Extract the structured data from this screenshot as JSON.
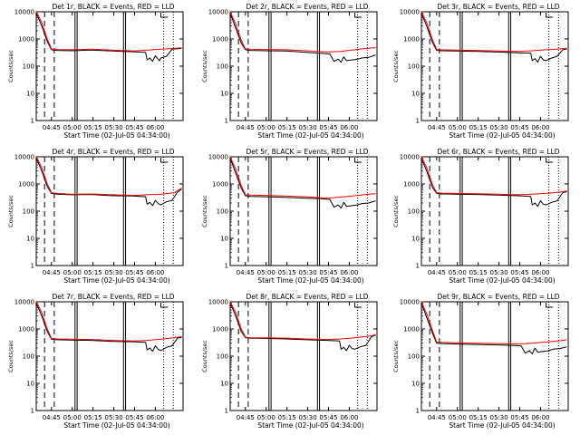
{
  "page": {
    "background": "#ffffff",
    "x_caption": "Start Time (02-Jul-05 04:34:00)",
    "y_caption": "Counts/sec",
    "y_ticks": [
      "1",
      "10",
      "100",
      "1000",
      "10000"
    ],
    "x_ticks_a": [
      "04:45",
      "05:00",
      "05:15",
      "05:30",
      "05:45",
      "06:00"
    ],
    "x_ticks_b": [
      "04:45",
      "05:00",
      "05:15",
      "05:30",
      "05:45",
      "06:00"
    ],
    "event_color": "#000000",
    "lld_color": "#ff0000"
  },
  "chart_data": [
    {
      "type": "line",
      "title": "Det 1r, BLACK = Events, RED = LLD",
      "xlabel": "Start Time (02-Jul-05 04:34:00)",
      "ylabel": "Counts/sec",
      "x_unit": "minutes after 04:34:00",
      "xlim": [
        0,
        106
      ],
      "ylim": [
        1,
        10000
      ],
      "yscale": "log",
      "series": [
        {
          "name": "Events",
          "color": "#000000",
          "x": [
            0,
            4,
            8,
            11,
            15,
            25,
            40,
            55,
            70,
            79,
            80,
            82,
            84,
            86,
            88,
            89,
            90,
            94,
            98,
            102,
            105
          ],
          "values": [
            9000,
            3000,
            800,
            400,
            380,
            370,
            390,
            360,
            340,
            320,
            170,
            200,
            150,
            240,
            180,
            160,
            200,
            230,
            420,
            440,
            450
          ]
        },
        {
          "name": "LLD",
          "color": "#ff0000",
          "x": [
            0,
            4,
            8,
            11,
            15,
            25,
            40,
            55,
            70,
            80,
            90,
            100,
            105
          ],
          "values": [
            10000,
            4000,
            1000,
            430,
            410,
            400,
            420,
            390,
            360,
            390,
            420,
            450,
            470
          ]
        }
      ]
    },
    {
      "type": "line",
      "title": "Det 2r, BLACK = Events, RED = LLD",
      "xlabel": "Start Time (02-Jul-05 04:34:00)",
      "ylabel": "Counts/sec",
      "x_unit": "minutes after 04:34:00",
      "xlim": [
        0,
        106
      ],
      "ylim": [
        1,
        10000
      ],
      "yscale": "log",
      "series": [
        {
          "name": "Events",
          "color": "#000000",
          "x": [
            0,
            4,
            8,
            11,
            15,
            25,
            40,
            55,
            65,
            72,
            75,
            78,
            80,
            82,
            84,
            88,
            92,
            95,
            100,
            105
          ],
          "values": [
            9000,
            2500,
            700,
            400,
            380,
            370,
            360,
            320,
            300,
            280,
            150,
            180,
            140,
            220,
            160,
            170,
            180,
            200,
            210,
            260
          ]
        },
        {
          "name": "LLD",
          "color": "#ff0000",
          "x": [
            0,
            4,
            8,
            11,
            15,
            25,
            40,
            55,
            70,
            80,
            90,
            100,
            105
          ],
          "values": [
            10000,
            3500,
            900,
            430,
            420,
            410,
            400,
            370,
            330,
            350,
            400,
            460,
            480
          ]
        }
      ]
    },
    {
      "type": "line",
      "title": "Det 3r, BLACK = Events, RED = LLD",
      "xlabel": "Start Time (02-Jul-05 04:34:00)",
      "ylabel": "Counts/sec",
      "x_unit": "minutes after 04:34:00",
      "xlim": [
        0,
        106
      ],
      "ylim": [
        1,
        10000
      ],
      "yscale": "log",
      "series": [
        {
          "name": "Events",
          "color": "#000000",
          "x": [
            0,
            4,
            8,
            11,
            15,
            25,
            40,
            55,
            70,
            79,
            80,
            82,
            84,
            86,
            88,
            90,
            94,
            98,
            102,
            105
          ],
          "values": [
            9000,
            2800,
            750,
            380,
            370,
            360,
            350,
            330,
            310,
            300,
            160,
            190,
            140,
            230,
            170,
            160,
            200,
            230,
            400,
            430
          ]
        },
        {
          "name": "LLD",
          "color": "#ff0000",
          "x": [
            0,
            4,
            8,
            11,
            15,
            25,
            40,
            55,
            70,
            80,
            90,
            100,
            105
          ],
          "values": [
            10000,
            3800,
            950,
            410,
            400,
            390,
            380,
            360,
            350,
            370,
            400,
            430,
            460
          ]
        }
      ]
    },
    {
      "type": "line",
      "title": "Det 4r, BLACK = Events, RED = LLD",
      "xlabel": "Start Time (02-Jul-05 04:34:00)",
      "ylabel": "Counts/sec",
      "x_unit": "minutes after 04:34:00",
      "xlim": [
        0,
        106
      ],
      "ylim": [
        1,
        10000
      ],
      "yscale": "log",
      "series": [
        {
          "name": "Events",
          "color": "#000000",
          "x": [
            0,
            4,
            8,
            11,
            15,
            25,
            40,
            55,
            70,
            79,
            80,
            82,
            84,
            86,
            88,
            90,
            94,
            98,
            102,
            105
          ],
          "values": [
            9000,
            3000,
            800,
            450,
            420,
            400,
            410,
            370,
            360,
            340,
            180,
            210,
            160,
            250,
            190,
            170,
            220,
            250,
            500,
            650
          ]
        },
        {
          "name": "LLD",
          "color": "#ff0000",
          "x": [
            0,
            4,
            8,
            11,
            15,
            25,
            40,
            55,
            70,
            80,
            90,
            100,
            105
          ],
          "values": [
            10000,
            4000,
            1000,
            480,
            450,
            420,
            430,
            400,
            380,
            400,
            420,
            480,
            700
          ]
        }
      ]
    },
    {
      "type": "line",
      "title": "Det 5r, BLACK = Events, RED = LLD",
      "xlabel": "Start Time (02-Jul-05 04:34:00)",
      "ylabel": "Counts/sec",
      "x_unit": "minutes after 04:34:00",
      "xlim": [
        0,
        106
      ],
      "ylim": [
        1,
        10000
      ],
      "yscale": "log",
      "series": [
        {
          "name": "Events",
          "color": "#000000",
          "x": [
            0,
            4,
            8,
            11,
            15,
            25,
            40,
            55,
            65,
            72,
            75,
            78,
            80,
            82,
            84,
            88,
            92,
            95,
            100,
            105
          ],
          "values": [
            9000,
            2500,
            700,
            370,
            350,
            340,
            320,
            300,
            290,
            270,
            140,
            170,
            130,
            210,
            150,
            160,
            170,
            190,
            200,
            240
          ]
        },
        {
          "name": "LLD",
          "color": "#ff0000",
          "x": [
            0,
            4,
            8,
            11,
            15,
            25,
            40,
            55,
            70,
            80,
            90,
            100,
            105
          ],
          "values": [
            10000,
            3500,
            900,
            400,
            390,
            380,
            360,
            340,
            300,
            330,
            370,
            420,
            440
          ]
        }
      ]
    },
    {
      "type": "line",
      "title": "Det 6r, BLACK = Events, RED = LLD",
      "xlabel": "Start Time (02-Jul-05 04:34:00)",
      "ylabel": "Counts/sec",
      "x_unit": "minutes after 04:34:00",
      "xlim": [
        0,
        106
      ],
      "ylim": [
        1,
        10000
      ],
      "yscale": "log",
      "series": [
        {
          "name": "Events",
          "color": "#000000",
          "x": [
            0,
            4,
            8,
            11,
            15,
            25,
            40,
            55,
            70,
            79,
            80,
            82,
            84,
            86,
            88,
            90,
            94,
            98,
            102,
            105
          ],
          "values": [
            9000,
            2800,
            750,
            450,
            430,
            420,
            410,
            390,
            370,
            350,
            170,
            200,
            150,
            240,
            180,
            170,
            210,
            240,
            480,
            520
          ]
        },
        {
          "name": "LLD",
          "color": "#ff0000",
          "x": [
            0,
            4,
            8,
            11,
            15,
            25,
            40,
            55,
            70,
            80,
            90,
            100,
            105
          ],
          "values": [
            10000,
            3800,
            950,
            480,
            460,
            450,
            440,
            420,
            400,
            420,
            450,
            500,
            560
          ]
        }
      ]
    },
    {
      "type": "line",
      "title": "Det 7r, BLACK = Events, RED = LLD",
      "xlabel": "Start Time (02-Jul-05 04:34:00)",
      "ylabel": "Counts/sec",
      "x_unit": "minutes after 04:34:00",
      "xlim": [
        0,
        106
      ],
      "ylim": [
        1,
        10000
      ],
      "yscale": "log",
      "series": [
        {
          "name": "Events",
          "color": "#000000",
          "x": [
            0,
            4,
            8,
            11,
            15,
            25,
            40,
            55,
            70,
            79,
            80,
            82,
            84,
            86,
            88,
            90,
            94,
            98,
            102,
            105
          ],
          "values": [
            9000,
            3000,
            800,
            420,
            400,
            390,
            380,
            350,
            340,
            320,
            170,
            200,
            150,
            240,
            180,
            160,
            210,
            240,
            460,
            490
          ]
        },
        {
          "name": "LLD",
          "color": "#ff0000",
          "x": [
            0,
            4,
            8,
            11,
            15,
            25,
            40,
            55,
            70,
            80,
            90,
            100,
            105
          ],
          "values": [
            10000,
            4000,
            1000,
            450,
            430,
            420,
            410,
            380,
            360,
            380,
            420,
            480,
            520
          ]
        }
      ]
    },
    {
      "type": "line",
      "title": "Det 8r, BLACK = Events, RED = LLD",
      "xlabel": "Start Time (02-Jul-05 04:34:00)",
      "ylabel": "Counts/sec",
      "x_unit": "minutes after 04:34:00",
      "xlim": [
        0,
        106
      ],
      "ylim": [
        1,
        10000
      ],
      "yscale": "log",
      "series": [
        {
          "name": "Events",
          "color": "#000000",
          "x": [
            0,
            4,
            8,
            11,
            15,
            25,
            40,
            55,
            70,
            79,
            80,
            82,
            84,
            86,
            88,
            90,
            94,
            98,
            102,
            105
          ],
          "values": [
            9000,
            3000,
            800,
            480,
            460,
            450,
            430,
            400,
            380,
            360,
            180,
            210,
            160,
            250,
            190,
            180,
            220,
            250,
            520,
            600
          ]
        },
        {
          "name": "LLD",
          "color": "#ff0000",
          "x": [
            0,
            4,
            8,
            11,
            15,
            25,
            40,
            55,
            70,
            80,
            90,
            100,
            105
          ],
          "values": [
            10000,
            4000,
            1000,
            500,
            480,
            470,
            460,
            430,
            410,
            430,
            470,
            540,
            620
          ]
        }
      ]
    },
    {
      "type": "line",
      "title": "Det 9r, BLACK = Events, RED = LLD",
      "xlabel": "Start Time (02-Jul-05 04:34:00)",
      "ylabel": "Counts/sec",
      "x_unit": "minutes after 04:34:00",
      "xlim": [
        0,
        106
      ],
      "ylim": [
        1,
        10000
      ],
      "yscale": "log",
      "series": [
        {
          "name": "Events",
          "color": "#000000",
          "x": [
            0,
            4,
            8,
            11,
            15,
            25,
            40,
            55,
            65,
            72,
            75,
            78,
            80,
            82,
            84,
            88,
            92,
            95,
            100,
            105
          ],
          "values": [
            9000,
            2500,
            700,
            300,
            290,
            280,
            270,
            260,
            250,
            240,
            130,
            160,
            120,
            200,
            140,
            150,
            160,
            180,
            190,
            220
          ]
        },
        {
          "name": "LLD",
          "color": "#ff0000",
          "x": [
            0,
            4,
            8,
            11,
            15,
            25,
            40,
            55,
            70,
            80,
            90,
            100,
            105
          ],
          "values": [
            10000,
            3500,
            900,
            330,
            320,
            310,
            300,
            290,
            280,
            300,
            330,
            370,
            400
          ]
        }
      ]
    }
  ]
}
